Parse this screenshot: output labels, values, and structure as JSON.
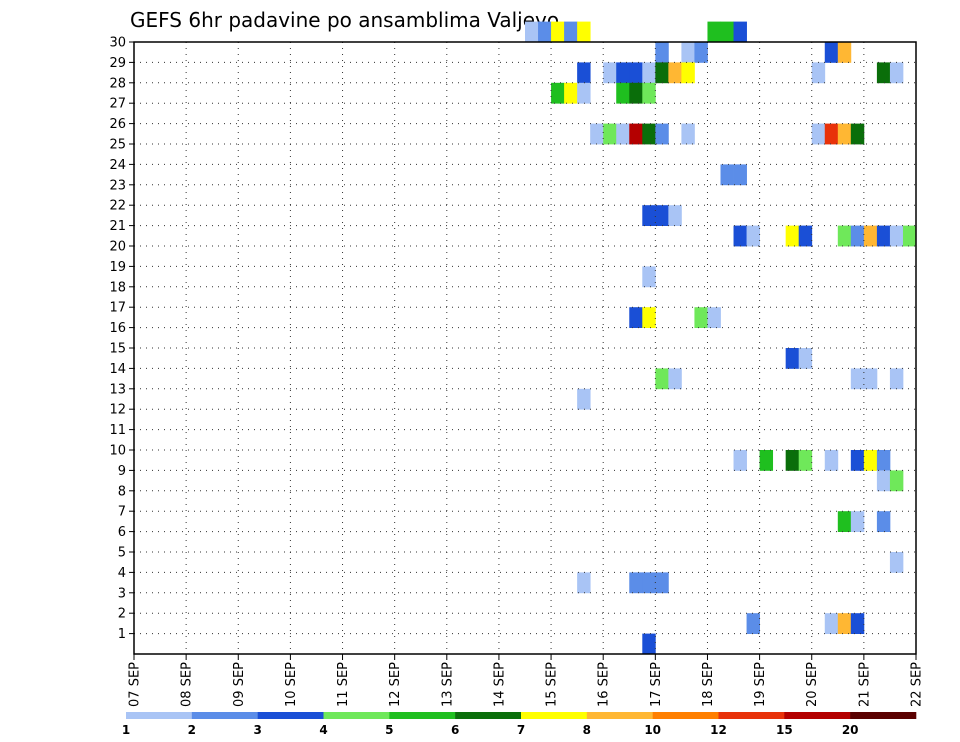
{
  "chart_data": {
    "type": "heatmap",
    "title": "GEFS 6hr padavine po ansamblima Valjevo",
    "xlabel": "",
    "ylabel": "",
    "x_tick_labels": [
      "07 SEP",
      "08 SEP",
      "09 SEP",
      "10 SEP",
      "11 SEP",
      "12 SEP",
      "13 SEP",
      "14 SEP",
      "15 SEP",
      "16 SEP",
      "17 SEP",
      "18 SEP",
      "19 SEP",
      "20 SEP",
      "21 SEP",
      "22 SEP"
    ],
    "xlim": [
      0,
      60
    ],
    "x_unit": "6-hour steps from 07 SEP",
    "y_tick_labels": [
      "1",
      "2",
      "3",
      "4",
      "5",
      "6",
      "7",
      "8",
      "9",
      "10",
      "11",
      "12",
      "13",
      "14",
      "15",
      "16",
      "17",
      "18",
      "19",
      "20",
      "21",
      "22",
      "23",
      "24",
      "25",
      "26",
      "27",
      "28",
      "29",
      "30"
    ],
    "ylim": [
      0,
      30
    ],
    "grid": true,
    "legend": {
      "placement": "bottom",
      "labels": [
        "1",
        "2",
        "3",
        "4",
        "5",
        "6",
        "7",
        "8",
        "10",
        "12",
        "15",
        "20"
      ],
      "colors": [
        "#a9c4f5",
        "#5b8de8",
        "#1a4fd6",
        "#6fe85a",
        "#1fbf1f",
        "#0a6e0a",
        "#ffff00",
        "#ffb733",
        "#ff7f00",
        "#e8320a",
        "#b40000",
        "#5a0000"
      ]
    },
    "cells": [
      [
        30,
        30,
        0
      ],
      [
        30,
        31,
        1
      ],
      [
        30,
        32,
        6
      ],
      [
        30,
        33,
        1
      ],
      [
        30,
        34,
        6
      ],
      [
        30,
        44,
        4
      ],
      [
        30,
        45,
        4
      ],
      [
        30,
        46,
        2
      ],
      [
        29,
        40,
        1
      ],
      [
        29,
        42,
        0
      ],
      [
        29,
        43,
        1
      ],
      [
        29,
        53,
        2
      ],
      [
        29,
        54,
        7
      ],
      [
        28,
        34,
        2
      ],
      [
        28,
        36,
        0
      ],
      [
        28,
        37,
        2
      ],
      [
        28,
        38,
        2
      ],
      [
        28,
        39,
        0
      ],
      [
        28,
        40,
        5
      ],
      [
        28,
        41,
        7
      ],
      [
        28,
        42,
        6
      ],
      [
        28,
        52,
        0
      ],
      [
        28,
        57,
        5
      ],
      [
        28,
        58,
        0
      ],
      [
        27,
        32,
        4
      ],
      [
        27,
        33,
        6
      ],
      [
        27,
        34,
        0
      ],
      [
        27,
        37,
        4
      ],
      [
        27,
        38,
        5
      ],
      [
        27,
        39,
        3
      ],
      [
        25,
        35,
        0
      ],
      [
        25,
        36,
        3
      ],
      [
        25,
        37,
        0
      ],
      [
        25,
        38,
        10
      ],
      [
        25,
        39,
        5
      ],
      [
        25,
        40,
        1
      ],
      [
        25,
        42,
        0
      ],
      [
        25,
        52,
        0
      ],
      [
        25,
        53,
        9
      ],
      [
        25,
        54,
        7
      ],
      [
        25,
        55,
        5
      ],
      [
        23,
        45,
        1
      ],
      [
        23,
        46,
        1
      ],
      [
        21,
        39,
        2
      ],
      [
        21,
        40,
        2
      ],
      [
        21,
        41,
        0
      ],
      [
        20,
        46,
        2
      ],
      [
        20,
        47,
        0
      ],
      [
        20,
        50,
        6
      ],
      [
        20,
        51,
        2
      ],
      [
        20,
        54,
        3
      ],
      [
        20,
        55,
        1
      ],
      [
        20,
        56,
        7
      ],
      [
        20,
        57,
        2
      ],
      [
        20,
        58,
        0
      ],
      [
        20,
        59,
        3
      ],
      [
        18,
        39,
        0
      ],
      [
        16,
        38,
        2
      ],
      [
        16,
        39,
        6
      ],
      [
        16,
        43,
        3
      ],
      [
        16,
        44,
        0
      ],
      [
        14,
        50,
        2
      ],
      [
        14,
        51,
        0
      ],
      [
        13,
        40,
        3
      ],
      [
        13,
        41,
        0
      ],
      [
        13,
        55,
        0
      ],
      [
        13,
        56,
        0
      ],
      [
        13,
        58,
        0
      ],
      [
        12,
        34,
        0
      ],
      [
        9,
        46,
        0
      ],
      [
        9,
        48,
        4
      ],
      [
        9,
        50,
        5
      ],
      [
        9,
        51,
        3
      ],
      [
        9,
        53,
        0
      ],
      [
        9,
        55,
        2
      ],
      [
        9,
        56,
        6
      ],
      [
        9,
        57,
        1
      ],
      [
        8,
        57,
        0
      ],
      [
        8,
        58,
        3
      ],
      [
        6,
        54,
        4
      ],
      [
        6,
        55,
        0
      ],
      [
        6,
        57,
        1
      ],
      [
        4,
        58,
        0
      ],
      [
        3,
        34,
        0
      ],
      [
        3,
        38,
        1
      ],
      [
        3,
        39,
        1
      ],
      [
        3,
        40,
        1
      ],
      [
        1,
        47,
        1
      ],
      [
        1,
        53,
        0
      ],
      [
        1,
        54,
        7
      ],
      [
        1,
        55,
        2
      ],
      [
        0,
        39,
        2
      ]
    ]
  }
}
